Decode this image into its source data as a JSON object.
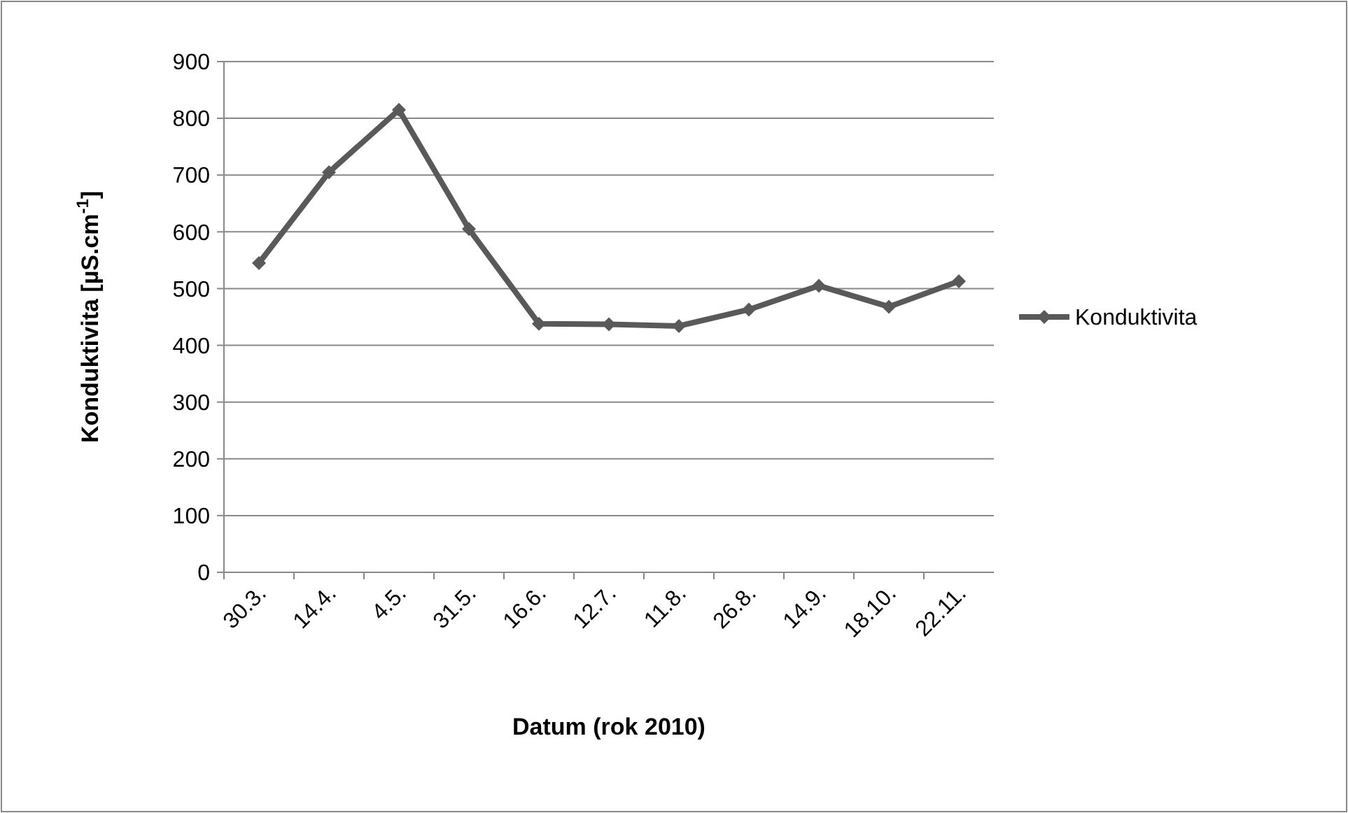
{
  "chart_data": {
    "type": "line",
    "xlabel": "Datum (rok 2010)",
    "ylabel": "Konduktivita [µS.cm$^{-1}$]",
    "categories": [
      "30.3.",
      "14.4.",
      "4.5.",
      "31.5.",
      "16.6.",
      "12.7.",
      "11.8.",
      "26.8.",
      "14.9.",
      "18.10.",
      "22.11."
    ],
    "series": [
      {
        "name": "Konduktivita",
        "color": "#595959",
        "values": [
          545,
          705,
          815,
          605,
          438,
          437,
          434,
          463,
          505,
          468,
          513
        ]
      }
    ],
    "ylim": [
      0,
      900
    ],
    "yticks": [
      0,
      100,
      200,
      300,
      400,
      500,
      600,
      700,
      800,
      900
    ],
    "grid": "y",
    "legend": "right",
    "marker": "diamond",
    "line_style": "solid"
  }
}
